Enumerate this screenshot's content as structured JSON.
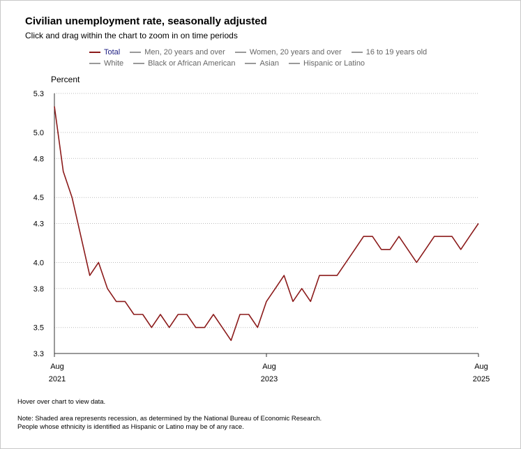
{
  "title": "Civilian unemployment rate, seasonally adjusted",
  "subtitle": "Click and drag within the chart to zoom in on time periods",
  "legend": [
    {
      "label": "Total",
      "active": true
    },
    {
      "label": "Men, 20 years and over",
      "active": false
    },
    {
      "label": "Women, 20 years and over",
      "active": false
    },
    {
      "label": "16 to 19 years old",
      "active": false
    },
    {
      "label": "White",
      "active": false
    },
    {
      "label": "Black or African American",
      "active": false
    },
    {
      "label": "Asian",
      "active": false
    },
    {
      "label": "Hispanic or Latino",
      "active": false
    }
  ],
  "hover_note": "Hover over chart to view data.",
  "notes": [
    "Note: Shaded area represents recession, as determined by the National Bureau of Economic Research.",
    "People whose ethnicity is identified as Hispanic or Latino may be of any race."
  ],
  "colors": {
    "series": "#8b1a1a",
    "grid": "#bbbbbb",
    "axis": "#333333"
  },
  "chart_data": {
    "type": "line",
    "title": "Civilian unemployment rate, seasonally adjusted",
    "ylabel": "Percent",
    "xlabel": "",
    "ylim": [
      3.3,
      5.3
    ],
    "y_ticks": [
      3.3,
      3.5,
      3.8,
      4.0,
      4.3,
      4.5,
      4.8,
      5.0,
      5.3
    ],
    "y_tick_labels": [
      "3.3",
      "3.5",
      "3.8",
      "4.0",
      "4.3",
      "4.5",
      "4.8",
      "5.0",
      "5.3"
    ],
    "x_ticks": [
      {
        "index": 0,
        "month": "Aug",
        "year": "2021"
      },
      {
        "index": 24,
        "month": "Aug",
        "year": "2023"
      },
      {
        "index": 48,
        "month": "Aug",
        "year": "2025"
      }
    ],
    "grid": true,
    "series": [
      {
        "name": "Total",
        "x": [
          "Aug 2021",
          "Sep 2021",
          "Oct 2021",
          "Nov 2021",
          "Dec 2021",
          "Jan 2022",
          "Feb 2022",
          "Mar 2022",
          "Apr 2022",
          "May 2022",
          "Jun 2022",
          "Jul 2022",
          "Aug 2022",
          "Sep 2022",
          "Oct 2022",
          "Nov 2022",
          "Dec 2022",
          "Jan 2023",
          "Feb 2023",
          "Mar 2023",
          "Apr 2023",
          "May 2023",
          "Jun 2023",
          "Jul 2023",
          "Aug 2023",
          "Sep 2023",
          "Oct 2023",
          "Nov 2023",
          "Dec 2023",
          "Jan 2024",
          "Feb 2024",
          "Mar 2024",
          "Apr 2024",
          "May 2024",
          "Jun 2024",
          "Jul 2024",
          "Aug 2024",
          "Sep 2024",
          "Oct 2024",
          "Nov 2024",
          "Dec 2024",
          "Jan 2025",
          "Feb 2025",
          "Mar 2025",
          "Apr 2025",
          "May 2025",
          "Jun 2025",
          "Jul 2025",
          "Aug 2025"
        ],
        "values": [
          5.2,
          4.7,
          4.5,
          4.2,
          3.9,
          4.0,
          3.8,
          3.7,
          3.7,
          3.6,
          3.6,
          3.5,
          3.6,
          3.5,
          3.6,
          3.6,
          3.5,
          3.5,
          3.6,
          3.5,
          3.4,
          3.6,
          3.6,
          3.5,
          3.7,
          3.8,
          3.9,
          3.7,
          3.8,
          3.7,
          3.9,
          3.9,
          3.9,
          4.0,
          4.1,
          4.2,
          4.2,
          4.1,
          4.1,
          4.2,
          4.1,
          4.0,
          4.1,
          4.2,
          4.2,
          4.2,
          4.1,
          4.2,
          4.3
        ]
      }
    ]
  }
}
